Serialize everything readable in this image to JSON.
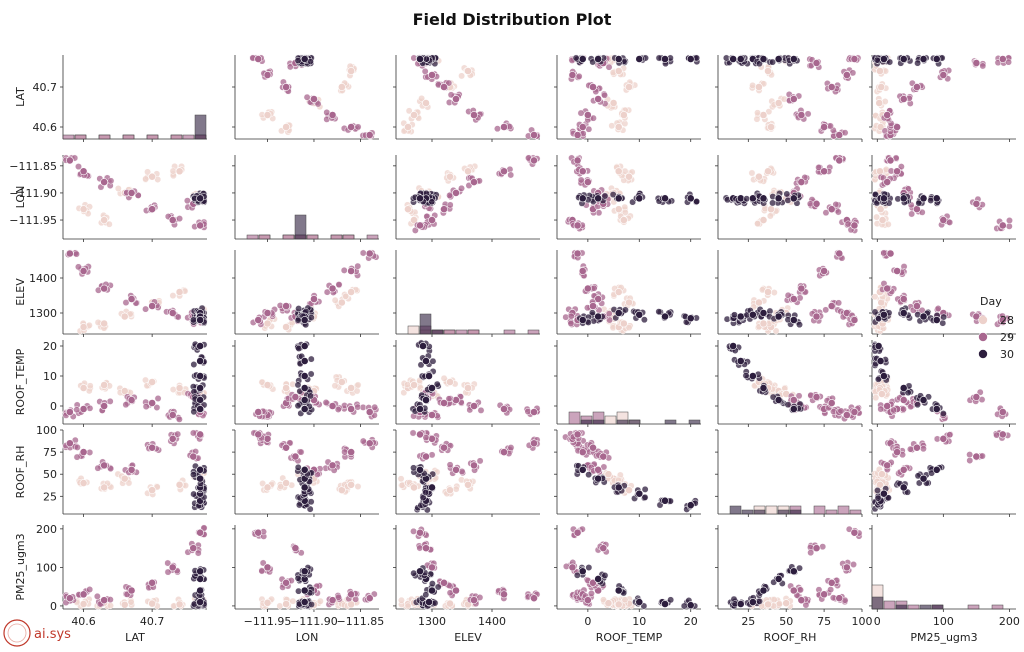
{
  "chart_data": {
    "type": "scatter",
    "title": "Field Distribution Plot",
    "variables": [
      {
        "name": "LAT",
        "range": [
          40.57,
          40.78
        ],
        "ticks": [
          {
            "v": 40.6,
            "label": "40.6"
          },
          {
            "v": 40.7,
            "label": "40.7"
          }
        ]
      },
      {
        "name": "LON",
        "range": [
          -111.985,
          -111.83
        ],
        "ticks": [
          {
            "v": -111.95,
            "label": "−111.95"
          },
          {
            "v": -111.9,
            "label": "−111.90"
          },
          {
            "v": -111.85,
            "label": "−111.85"
          }
        ]
      },
      {
        "name": "ELEV",
        "range": [
          1240,
          1480
        ],
        "ticks": [
          {
            "v": 1300,
            "label": "1300"
          },
          {
            "v": 1400,
            "label": "1400"
          }
        ]
      },
      {
        "name": "ROOF_TEMP",
        "range": [
          -6,
          22
        ],
        "ticks": [
          {
            "v": 0,
            "label": "0"
          },
          {
            "v": 10,
            "label": "10"
          },
          {
            "v": 20,
            "label": "20"
          }
        ]
      },
      {
        "name": "ROOF_RH",
        "range": [
          5,
          100
        ],
        "ticks": [
          {
            "v": 25,
            "label": "25"
          },
          {
            "v": 50,
            "label": "50"
          },
          {
            "v": 75,
            "label": "75"
          },
          {
            "v": 100,
            "label": "100"
          }
        ]
      },
      {
        "name": "PM25_ugm3",
        "range": [
          -8,
          210
        ],
        "ticks": [
          {
            "v": 0,
            "label": "0"
          },
          {
            "v": 100,
            "label": "100"
          },
          {
            "v": 200,
            "label": "200"
          }
        ]
      }
    ],
    "y_ticks": {
      "LAT": [
        "40.6",
        "40.7"
      ],
      "LON": [
        "−111.95",
        "−111.90",
        "−111.85"
      ],
      "ELEV": [
        "1300",
        "1400"
      ],
      "ROOF_TEMP": [
        "0",
        "10",
        "20"
      ],
      "ROOF_RH": [
        "50",
        "100"
      ],
      "PM25_ugm3": [
        "0",
        "100",
        "200"
      ]
    },
    "legend": {
      "title": "Day",
      "entries": [
        {
          "label": "28",
          "color": "#edd1cb"
        },
        {
          "label": "29",
          "color": "#a8678f"
        },
        {
          "label": "30",
          "color": "#2d1e3e"
        }
      ],
      "placement": "right"
    },
    "point_color_day28": "#edd1cb",
    "point_color_day29": "#a8678f",
    "point_color_day30": "#2d1e3e",
    "diagonal": "histogram",
    "series": [
      {
        "name": "28",
        "points": [
          {
            "LAT": 40.6,
            "LON": -111.93,
            "ELEV": 1260,
            "ROOF_TEMP": 6,
            "ROOF_RH": 40,
            "PM25_ugm3": 5
          },
          {
            "LAT": 40.63,
            "LON": -111.95,
            "ELEV": 1270,
            "ROOF_TEMP": 7,
            "ROOF_RH": 35,
            "PM25_ugm3": 8
          },
          {
            "LAT": 40.66,
            "LON": -111.9,
            "ELEV": 1290,
            "ROOF_TEMP": 5,
            "ROOF_RH": 45,
            "PM25_ugm3": 3
          },
          {
            "LAT": 40.7,
            "LON": -111.87,
            "ELEV": 1330,
            "ROOF_TEMP": 8,
            "ROOF_RH": 32,
            "PM25_ugm3": 6
          },
          {
            "LAT": 40.74,
            "LON": -111.86,
            "ELEV": 1360,
            "ROOF_TEMP": 6,
            "ROOF_RH": 38,
            "PM25_ugm3": 4
          },
          {
            "LAT": 40.77,
            "LON": -111.91,
            "ELEV": 1300,
            "ROOF_TEMP": 4,
            "ROOF_RH": 50,
            "PM25_ugm3": 7
          }
        ]
      },
      {
        "name": "29",
        "points": [
          {
            "LAT": 40.58,
            "LON": -111.84,
            "ELEV": 1470,
            "ROOF_TEMP": -2,
            "ROOF_RH": 85,
            "PM25_ugm3": 20
          },
          {
            "LAT": 40.6,
            "LON": -111.86,
            "ELEV": 1420,
            "ROOF_TEMP": -1,
            "ROOF_RH": 75,
            "PM25_ugm3": 30
          },
          {
            "LAT": 40.63,
            "LON": -111.88,
            "ELEV": 1370,
            "ROOF_TEMP": 0,
            "ROOF_RH": 60,
            "PM25_ugm3": 15
          },
          {
            "LAT": 40.67,
            "LON": -111.9,
            "ELEV": 1340,
            "ROOF_TEMP": 2,
            "ROOF_RH": 55,
            "PM25_ugm3": 40
          },
          {
            "LAT": 40.7,
            "LON": -111.93,
            "ELEV": 1320,
            "ROOF_TEMP": 1,
            "ROOF_RH": 80,
            "PM25_ugm3": 60
          },
          {
            "LAT": 40.73,
            "LON": -111.95,
            "ELEV": 1300,
            "ROOF_TEMP": -3,
            "ROOF_RH": 90,
            "PM25_ugm3": 100
          },
          {
            "LAT": 40.76,
            "LON": -111.92,
            "ELEV": 1290,
            "ROOF_TEMP": 3,
            "ROOF_RH": 70,
            "PM25_ugm3": 150
          },
          {
            "LAT": 40.77,
            "LON": -111.96,
            "ELEV": 1280,
            "ROOF_TEMP": -2,
            "ROOF_RH": 95,
            "PM25_ugm3": 190
          }
        ]
      },
      {
        "name": "30",
        "points": [
          {
            "LAT": 40.77,
            "LON": -111.91,
            "ELEV": 1285,
            "ROOF_TEMP": 20,
            "ROOF_RH": 15,
            "PM25_ugm3": 2
          },
          {
            "LAT": 40.77,
            "LON": -111.91,
            "ELEV": 1290,
            "ROOF_TEMP": 15,
            "ROOF_RH": 20,
            "PM25_ugm3": 5
          },
          {
            "LAT": 40.77,
            "LON": -111.91,
            "ELEV": 1295,
            "ROOF_TEMP": 10,
            "ROOF_RH": 28,
            "PM25_ugm3": 10
          },
          {
            "LAT": 40.77,
            "LON": -111.91,
            "ELEV": 1300,
            "ROOF_TEMP": 6,
            "ROOF_RH": 35,
            "PM25_ugm3": 40
          },
          {
            "LAT": 40.77,
            "LON": -111.91,
            "ELEV": 1290,
            "ROOF_TEMP": 2,
            "ROOF_RH": 45,
            "PM25_ugm3": 70
          },
          {
            "LAT": 40.77,
            "LON": -111.91,
            "ELEV": 1280,
            "ROOF_TEMP": -1,
            "ROOF_RH": 55,
            "PM25_ugm3": 90
          }
        ]
      }
    ]
  },
  "watermark": "ai.sys"
}
